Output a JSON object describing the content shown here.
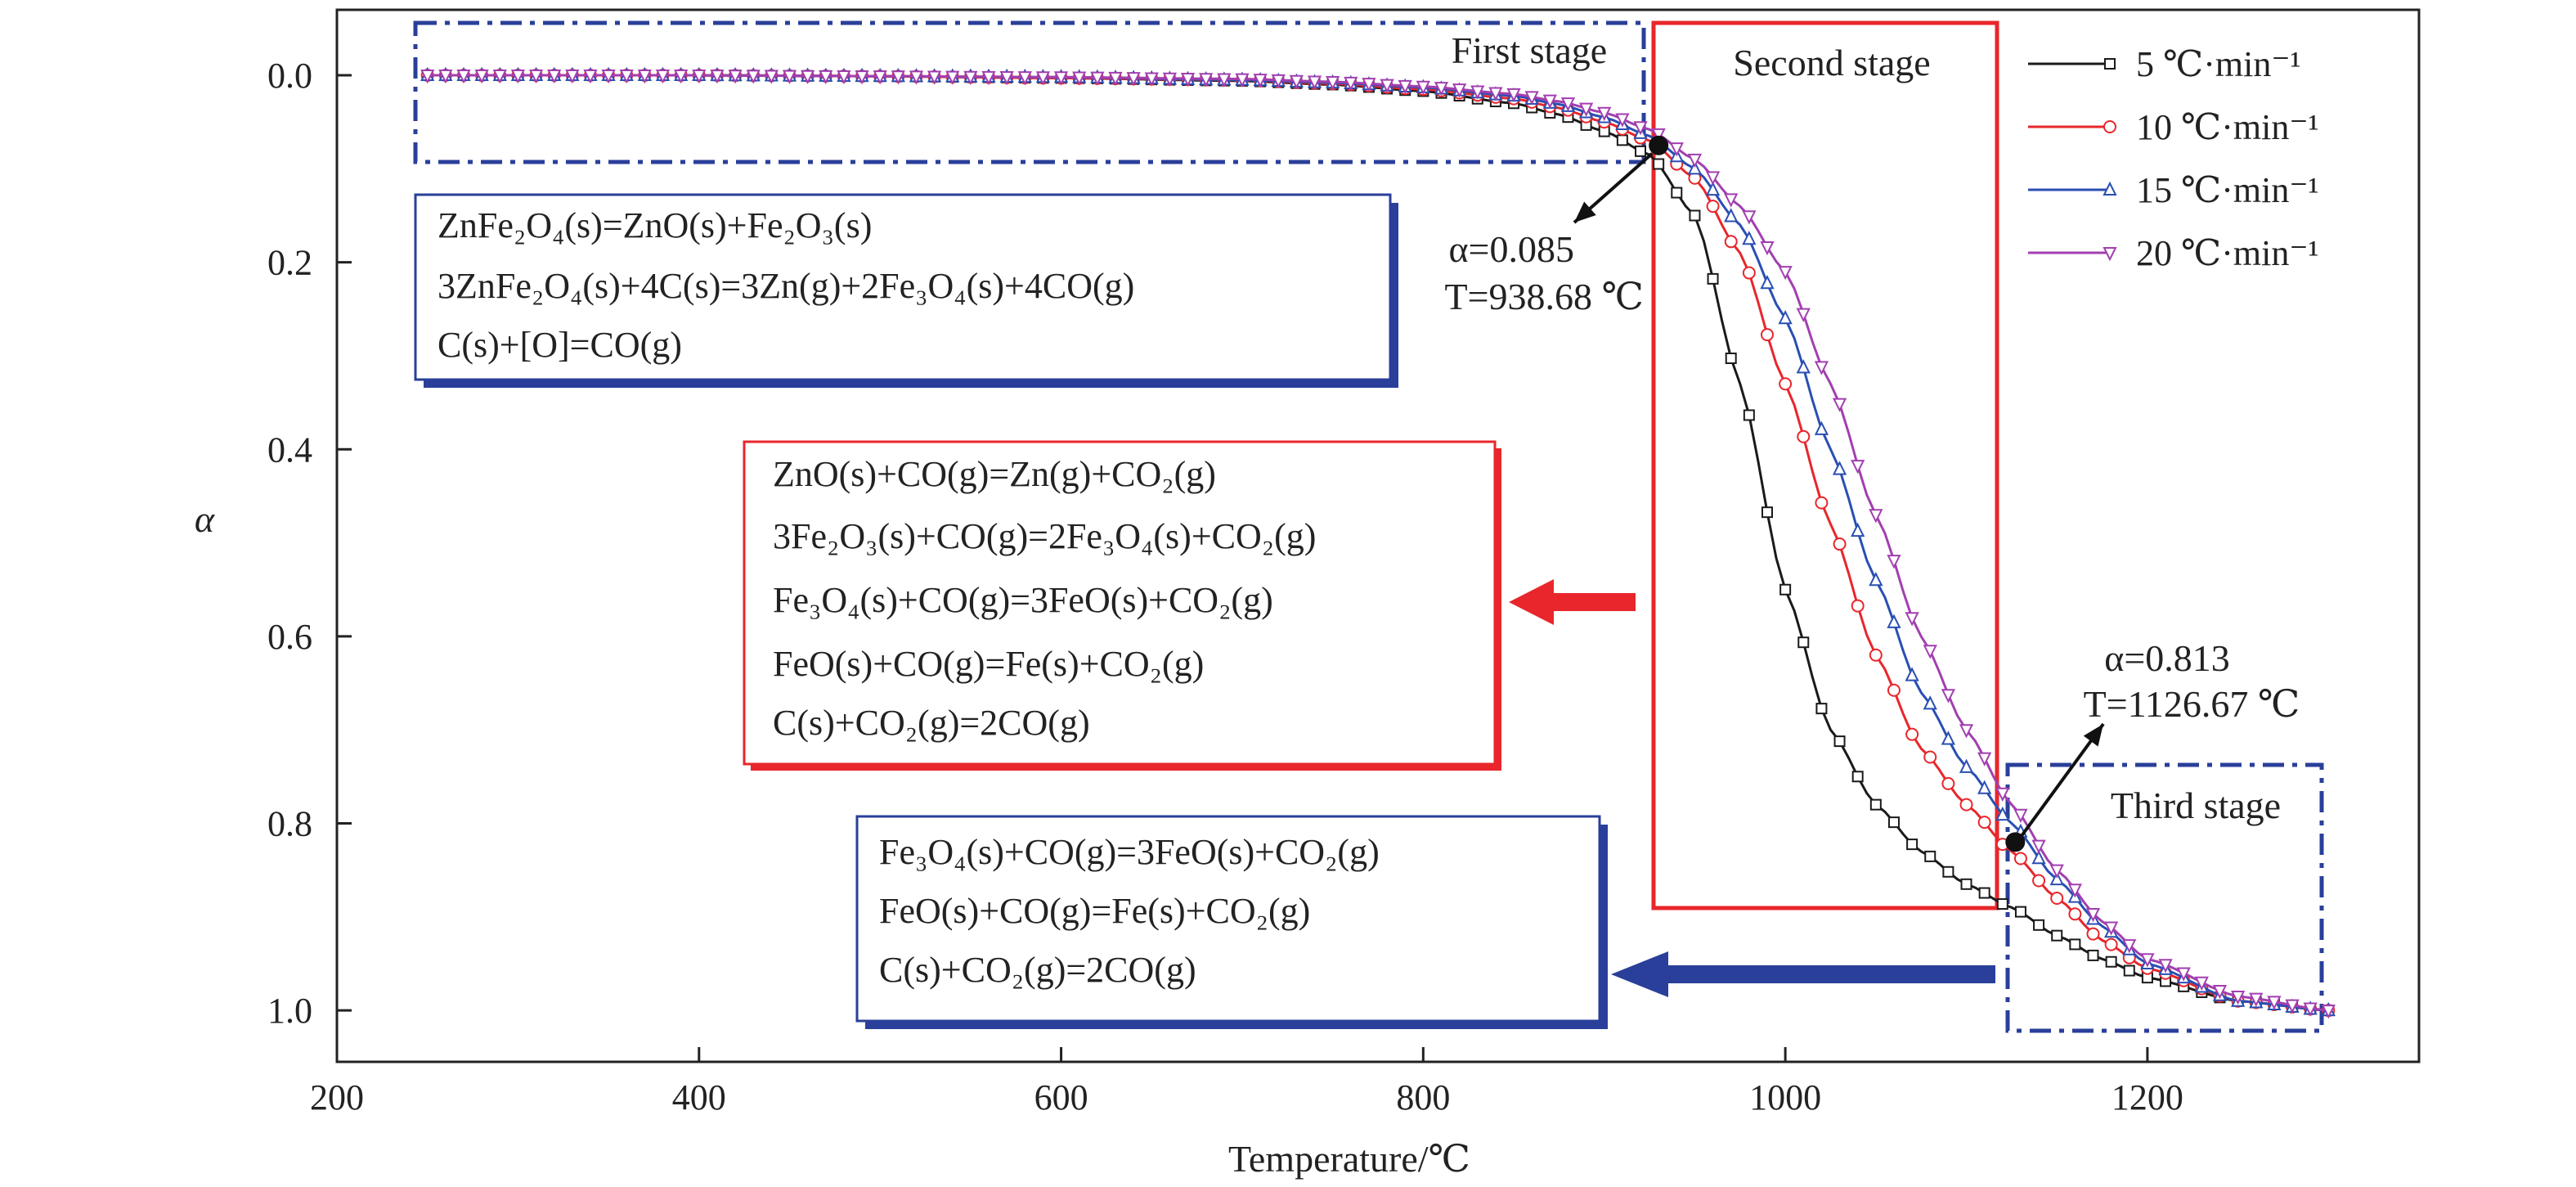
{
  "chart_data": {
    "type": "line",
    "xlabel": "Temperature/℃",
    "ylabel": "α",
    "xlim": [
      200,
      1350
    ],
    "ylim": [
      -0.07,
      1.055
    ],
    "y_inverted": true,
    "xticks": [
      "200",
      "400",
      "600",
      "800",
      "1000",
      "1200"
    ],
    "yticks": [
      "0.0",
      "0.2",
      "0.4",
      "0.6",
      "0.8",
      "1.0"
    ],
    "legend_position": "top-right",
    "series": [
      {
        "name": "5 ℃·min⁻¹",
        "color": "#1a1a1a",
        "marker": "square",
        "x": [
          250,
          300,
          400,
          500,
          600,
          700,
          750,
          800,
          850,
          875,
          900,
          925,
          950,
          975,
          1000,
          1025,
          1050,
          1075,
          1100,
          1125,
          1150,
          1175,
          1200,
          1250,
          1300
        ],
        "y": [
          0.0,
          0.0,
          0.0,
          0.001,
          0.003,
          0.006,
          0.01,
          0.017,
          0.03,
          0.042,
          0.06,
          0.085,
          0.15,
          0.33,
          0.55,
          0.7,
          0.78,
          0.83,
          0.865,
          0.89,
          0.92,
          0.945,
          0.965,
          0.99,
          1.0
        ]
      },
      {
        "name": "10 ℃·min⁻¹",
        "color": "#e8262b",
        "marker": "circle",
        "x": [
          250,
          300,
          400,
          500,
          600,
          700,
          750,
          800,
          850,
          875,
          900,
          925,
          950,
          975,
          1000,
          1025,
          1050,
          1075,
          1100,
          1125,
          1150,
          1175,
          1200,
          1250,
          1300
        ],
        "y": [
          0.0,
          0.0,
          0.0,
          0.001,
          0.003,
          0.005,
          0.009,
          0.015,
          0.025,
          0.035,
          0.05,
          0.07,
          0.11,
          0.19,
          0.33,
          0.48,
          0.62,
          0.72,
          0.78,
          0.83,
          0.88,
          0.925,
          0.955,
          0.99,
          1.0
        ]
      },
      {
        "name": "15 ℃·min⁻¹",
        "color": "#2a4fb3",
        "marker": "triangle-up",
        "x": [
          250,
          300,
          400,
          500,
          600,
          700,
          750,
          800,
          850,
          875,
          900,
          925,
          950,
          975,
          1000,
          1025,
          1050,
          1075,
          1100,
          1125,
          1150,
          1175,
          1200,
          1250,
          1300
        ],
        "y": [
          0.0,
          0.0,
          0.0,
          0.001,
          0.002,
          0.005,
          0.008,
          0.013,
          0.022,
          0.031,
          0.045,
          0.065,
          0.1,
          0.16,
          0.26,
          0.4,
          0.54,
          0.66,
          0.74,
          0.8,
          0.86,
          0.91,
          0.95,
          0.99,
          1.0
        ]
      },
      {
        "name": "20 ℃·min⁻¹",
        "color": "#a23fb0",
        "marker": "triangle-down",
        "x": [
          250,
          300,
          400,
          500,
          600,
          700,
          750,
          800,
          850,
          875,
          900,
          925,
          950,
          975,
          1000,
          1025,
          1050,
          1075,
          1100,
          1125,
          1150,
          1175,
          1200,
          1250,
          1300
        ],
        "y": [
          0.0,
          0.0,
          0.0,
          0.001,
          0.002,
          0.004,
          0.007,
          0.012,
          0.02,
          0.028,
          0.04,
          0.058,
          0.09,
          0.14,
          0.21,
          0.33,
          0.47,
          0.6,
          0.7,
          0.78,
          0.85,
          0.905,
          0.945,
          0.985,
          1.0
        ]
      }
    ],
    "stages": {
      "first": "First stage",
      "second": "Second stage",
      "third": "Third stage"
    },
    "annotations": [
      {
        "alpha": "α=0.085",
        "temp": "T=938.68 ℃",
        "point_x": 930,
        "point_y": 0.075
      },
      {
        "alpha": "α=0.813",
        "temp": "T=1126.67 ℃",
        "point_x": 1127,
        "point_y": 0.82
      }
    ],
    "reaction_boxes": [
      {
        "color": "#2a3f9a",
        "lines": [
          "ZnFe₂O₄(s)=ZnO(s)+Fe₂O₃(s)",
          "3ZnFe₂O₄(s)+4C(s)=3Zn(g)+2Fe₃O₄(s)+4CO(g)",
          "C(s)+[O]=CO(g)"
        ]
      },
      {
        "color": "#e8262b",
        "lines": [
          "ZnO(s)+CO(g)=Zn(g)+CO₂(g)",
          "3Fe₂O₃(s)+CO(g)=2Fe₃O₄(s)+CO₂(g)",
          "Fe₃O₄(s)+CO(g)=3FeO(s)+CO₂(g)",
          "FeO(s)+CO(g)=Fe(s)+CO₂(g)",
          "C(s)+CO₂(g)=2CO(g)"
        ]
      },
      {
        "color": "#2a3f9a",
        "lines": [
          "Fe₃O₄(s)+CO(g)=3FeO(s)+CO₂(g)",
          "FeO(s)+CO(g)=Fe(s)+CO₂(g)",
          "C(s)+CO₂(g)=2CO(g)"
        ]
      }
    ]
  }
}
